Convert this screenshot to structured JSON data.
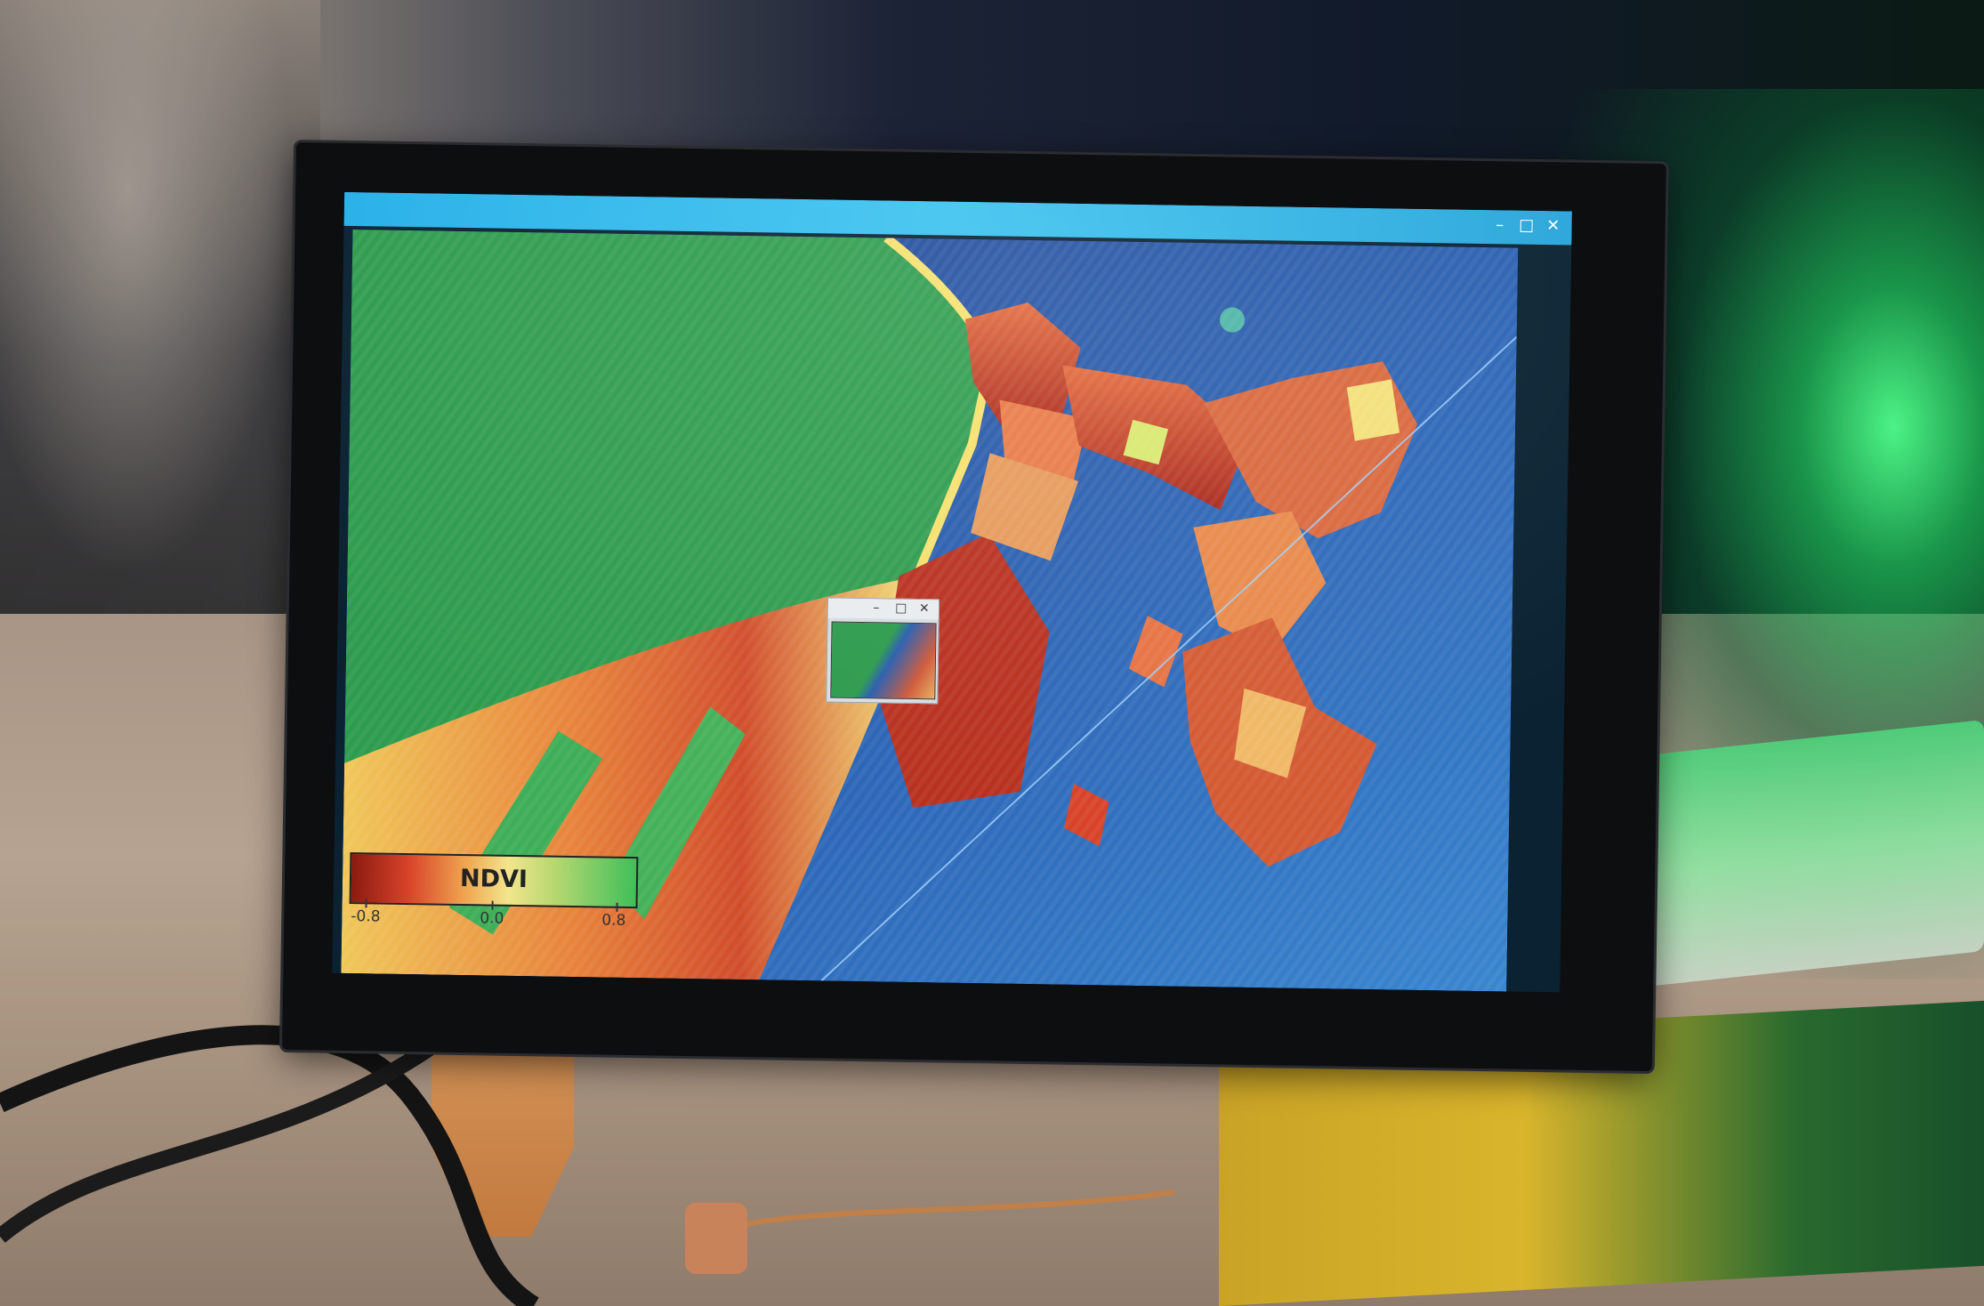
{
  "screen": {
    "window_title": "",
    "title_buttons": {
      "minimize": "–",
      "maximize": "□",
      "close": "✕"
    }
  },
  "colorbar": {
    "label": "NDVI",
    "ticks": [
      "-0.8",
      "0.0",
      "0.8"
    ],
    "colors": [
      "#8b1a10",
      "#d8432a",
      "#f0a550",
      "#f3e58c",
      "#b4d770",
      "#3fbf5a"
    ]
  },
  "popup": {
    "buttons": {
      "minimize": "–",
      "maximize": "□",
      "close": "✕"
    }
  },
  "scene_colors": {
    "vegetation_green": "#2e9c4e",
    "water_blue": "#2b5fb0",
    "hot_red": "#c9402a",
    "titlebar_blue": "#3cc3f0",
    "led_green": "#50ff8c"
  }
}
